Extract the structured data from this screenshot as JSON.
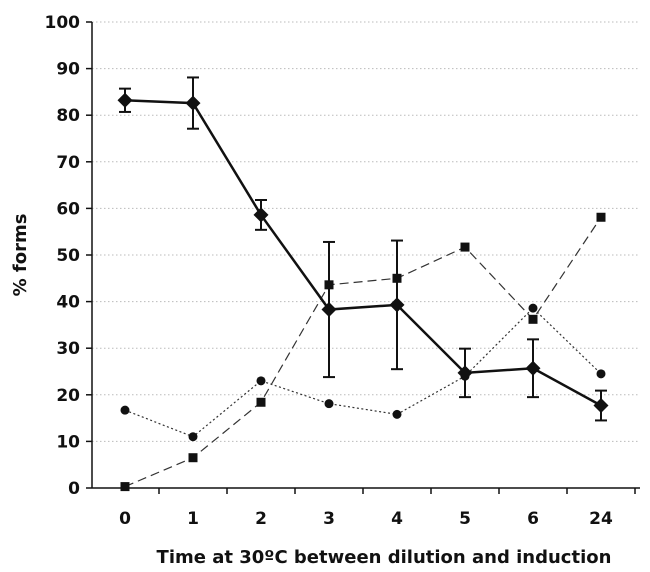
{
  "chart_data": {
    "type": "line",
    "title": "",
    "xlabel": "Time at 30ºC between dilution and induction",
    "ylabel": "% forms",
    "categories": [
      "0",
      "1",
      "2",
      "3",
      "4",
      "5",
      "6",
      "24"
    ],
    "ylim": [
      0,
      100
    ],
    "yticks": [
      0,
      10,
      20,
      30,
      40,
      50,
      60,
      70,
      80,
      90,
      100
    ],
    "grid": "horizontal dotted",
    "legend": "none",
    "series": [
      {
        "marker": "diamond",
        "style": "solid",
        "values": [
          83.2,
          82.6,
          58.6,
          38.3,
          39.3,
          24.7,
          25.7,
          17.7
        ],
        "error": [
          2.5,
          5.5,
          3.2,
          14.5,
          13.8,
          5.2,
          6.2,
          3.2
        ]
      },
      {
        "marker": "square",
        "style": "dashed",
        "values": [
          0.3,
          6.5,
          18.4,
          43.6,
          45.0,
          51.7,
          36.2,
          58.1
        ]
      },
      {
        "marker": "circle",
        "style": "dotted",
        "values": [
          16.7,
          11.0,
          23.0,
          18.1,
          15.8,
          24.0,
          38.6,
          24.5
        ]
      }
    ]
  }
}
